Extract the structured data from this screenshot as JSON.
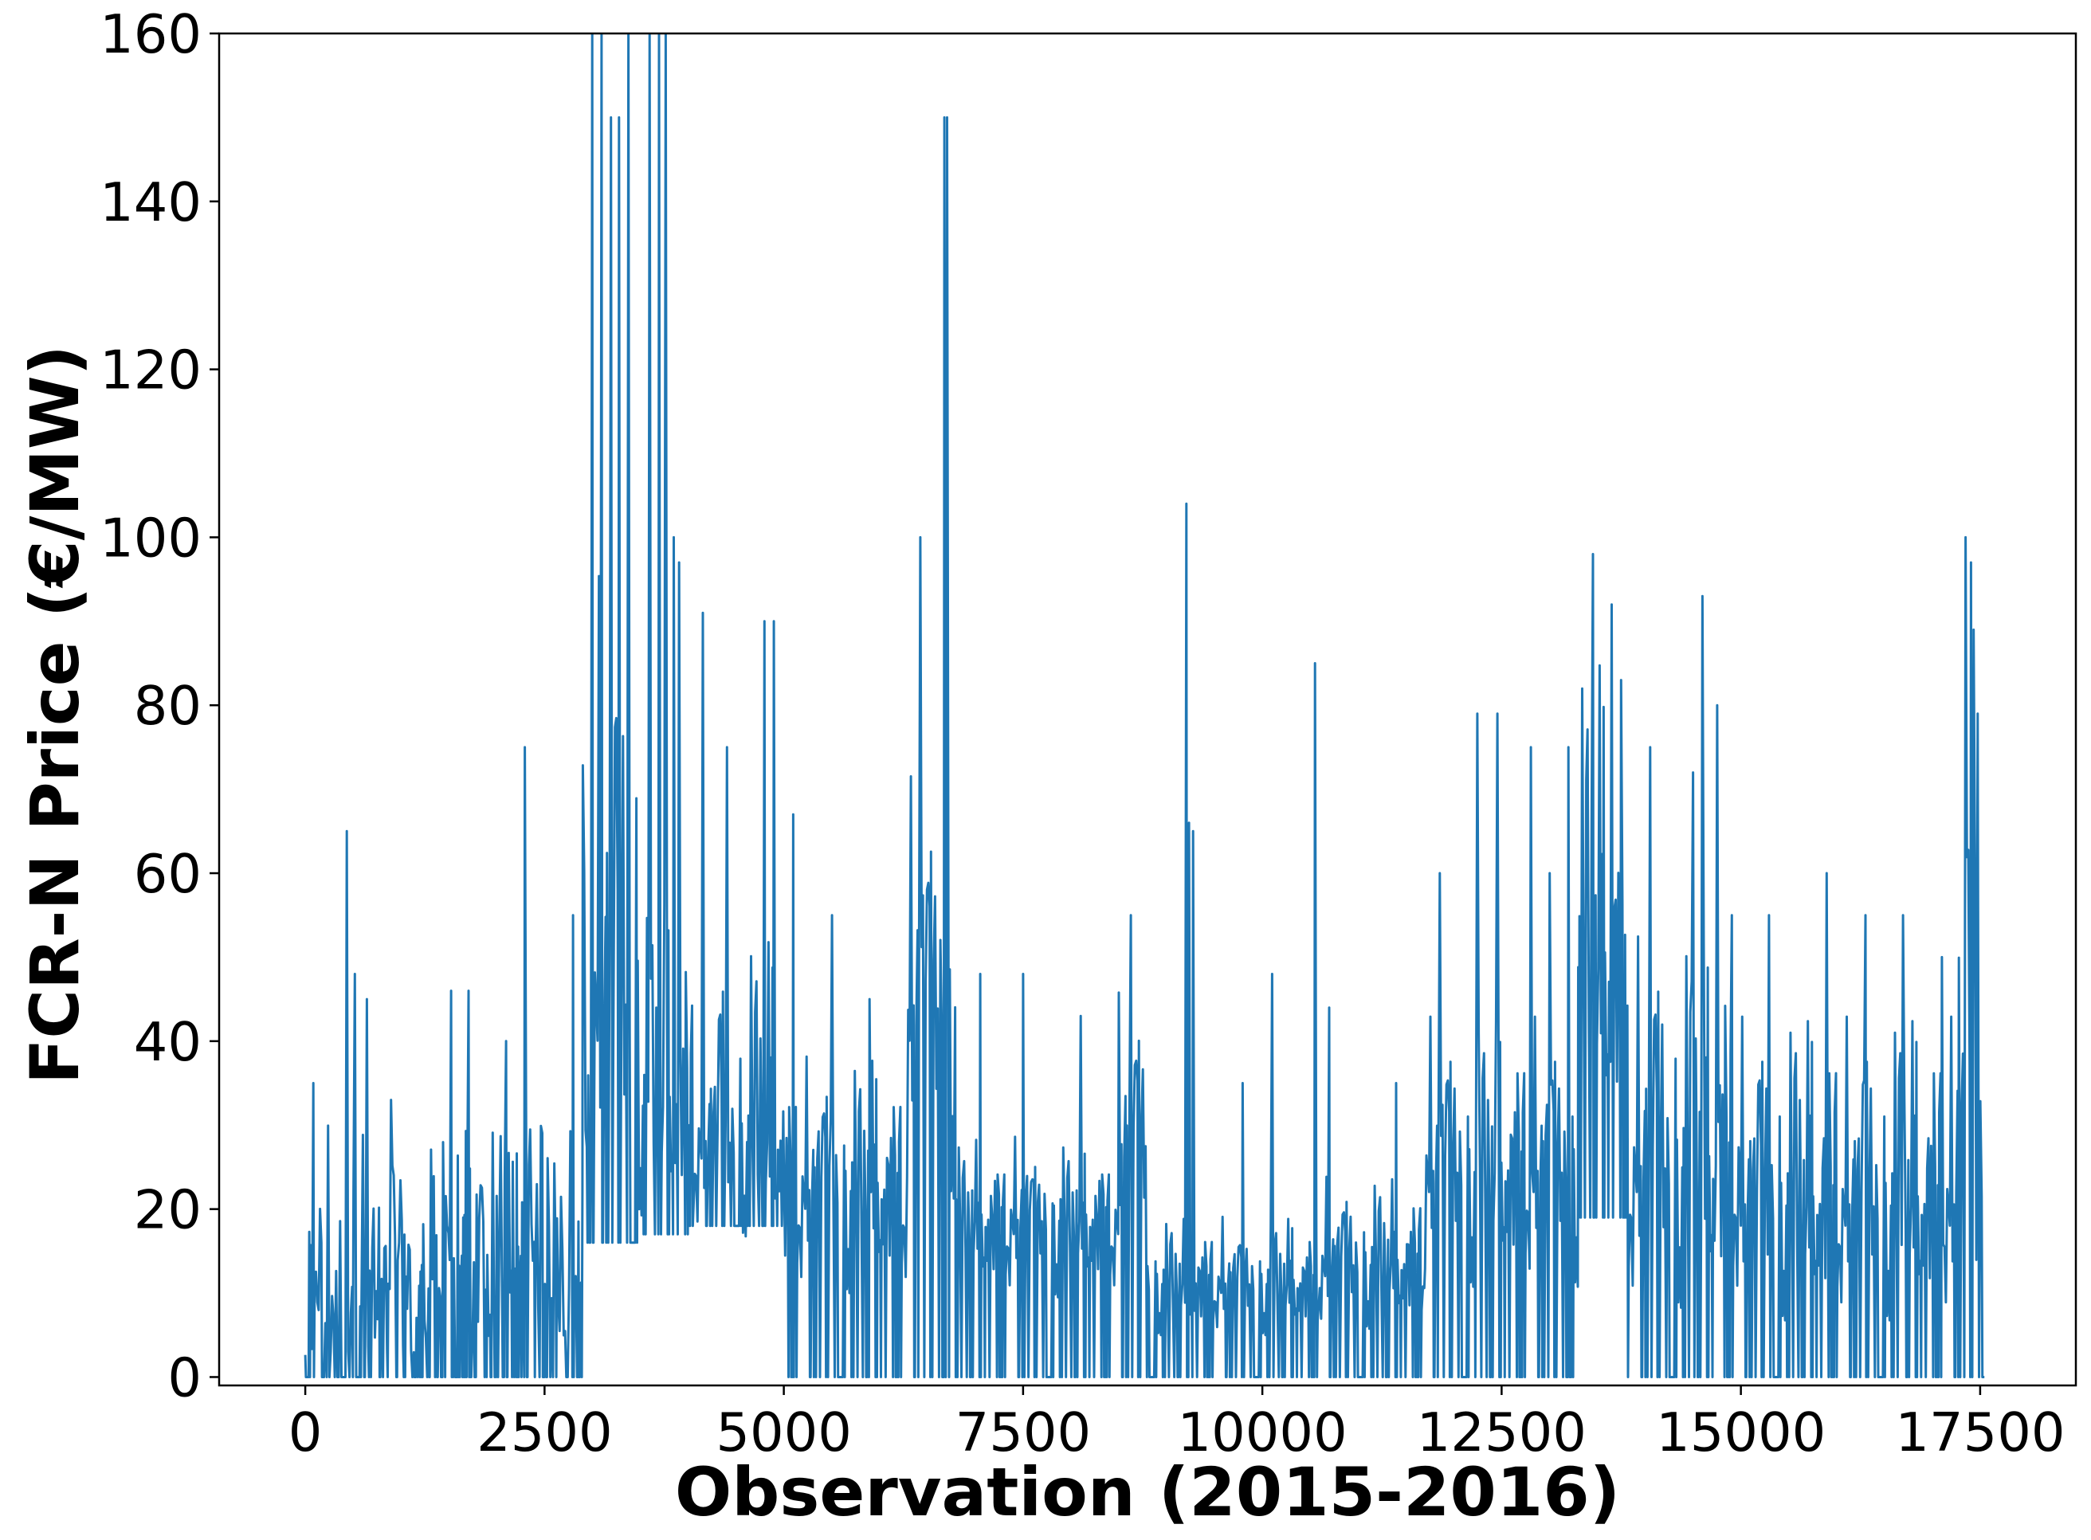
{
  "chart_data": {
    "type": "line",
    "title": "",
    "xlabel": "Observation (2015-2016)",
    "ylabel": "FCR-N Price (€/MW)",
    "xlim": [
      -900,
      18500
    ],
    "ylim": [
      -1,
      160
    ],
    "x_ticks": [
      0,
      2500,
      5000,
      7500,
      10000,
      12500,
      15000,
      17500
    ],
    "x_tick_labels": [
      "0",
      "2500",
      "5000",
      "7500",
      "10000",
      "12500",
      "15000",
      "17500"
    ],
    "y_ticks": [
      0,
      20,
      40,
      60,
      80,
      100,
      120,
      140,
      160
    ],
    "y_tick_labels": [
      "0",
      "20",
      "40",
      "60",
      "80",
      "100",
      "120",
      "140",
      "160"
    ],
    "grid": false,
    "legend": "none",
    "series_color": "#1f77b4",
    "x_range": [
      0,
      17544
    ],
    "segments": [
      {
        "x": [
          0,
          1300
        ],
        "low": 0,
        "high": 30,
        "mid": 10,
        "spikes": [
          [
            80,
            35
          ],
          [
            430,
            65
          ],
          [
            520,
            48
          ],
          [
            650,
            45
          ],
          [
            900,
            33
          ]
        ]
      },
      {
        "x": [
          1300,
          2900
        ],
        "low": 0,
        "high": 30,
        "mid": 12,
        "spikes": [
          [
            1520,
            46
          ],
          [
            1700,
            46
          ],
          [
            2100,
            40
          ],
          [
            2300,
            75
          ],
          [
            2800,
            55
          ]
        ]
      },
      {
        "x": [
          2900,
          3500
        ],
        "low": 16,
        "high": 100,
        "mid": 40,
        "spikes": [
          [
            3000,
            160
          ],
          [
            3100,
            160
          ],
          [
            3200,
            150
          ],
          [
            3280,
            150
          ],
          [
            3380,
            160
          ]
        ]
      },
      {
        "x": [
          3500,
          4000
        ],
        "low": 17,
        "high": 60,
        "mid": 30,
        "spikes": [
          [
            3600,
            160
          ],
          [
            3700,
            160
          ],
          [
            3760,
            160
          ],
          [
            3850,
            100
          ],
          [
            3900,
            97
          ]
        ]
      },
      {
        "x": [
          4000,
          5000
        ],
        "low": 18,
        "high": 55,
        "mid": 26,
        "spikes": [
          [
            4150,
            91
          ],
          [
            4400,
            75
          ],
          [
            4800,
            90
          ],
          [
            4900,
            90
          ]
        ]
      },
      {
        "x": [
          5000,
          6300
        ],
        "low": 0,
        "high": 40,
        "mid": 20,
        "spikes": [
          [
            5100,
            67
          ],
          [
            5500,
            55
          ],
          [
            5900,
            45
          ]
        ]
      },
      {
        "x": [
          6300,
          6800
        ],
        "low": 0,
        "high": 75,
        "mid": 40,
        "spikes": [
          [
            6430,
            100
          ],
          [
            6680,
            150
          ],
          [
            6700,
            150
          ]
        ]
      },
      {
        "x": [
          6800,
          8500
        ],
        "low": 0,
        "high": 30,
        "mid": 17,
        "spikes": [
          [
            7050,
            48
          ],
          [
            7500,
            48
          ],
          [
            8100,
            43
          ]
        ]
      },
      {
        "x": [
          8500,
          8800
        ],
        "low": 0,
        "high": 48,
        "mid": 25,
        "spikes": [
          [
            8620,
            55
          ]
        ]
      },
      {
        "x": [
          8800,
          10600
        ],
        "low": 0,
        "high": 20,
        "mid": 10,
        "spikes": [
          [
            9200,
            104
          ],
          [
            9240,
            66
          ],
          [
            9280,
            65
          ],
          [
            9800,
            35
          ],
          [
            10100,
            48
          ],
          [
            10550,
            85
          ]
        ]
      },
      {
        "x": [
          10600,
          11700
        ],
        "low": 0,
        "high": 25,
        "mid": 12,
        "spikes": [
          [
            10700,
            44
          ],
          [
            11400,
            35
          ]
        ]
      },
      {
        "x": [
          11700,
          13300
        ],
        "low": 0,
        "high": 45,
        "mid": 22,
        "spikes": [
          [
            11850,
            60
          ],
          [
            12240,
            79
          ],
          [
            12460,
            79
          ],
          [
            12800,
            75
          ],
          [
            13000,
            60
          ],
          [
            13200,
            75
          ]
        ]
      },
      {
        "x": [
          13300,
          13800
        ],
        "low": 19,
        "high": 90,
        "mid": 45,
        "spikes": [
          [
            13450,
            98
          ],
          [
            13650,
            92
          ],
          [
            13750,
            83
          ]
        ]
      },
      {
        "x": [
          13800,
          15000
        ],
        "low": 0,
        "high": 55,
        "mid": 22,
        "spikes": [
          [
            14050,
            75
          ],
          [
            14500,
            72
          ],
          [
            14600,
            93
          ],
          [
            14750,
            80
          ],
          [
            14900,
            55
          ]
        ]
      },
      {
        "x": [
          15000,
          17250
        ],
        "low": 0,
        "high": 45,
        "mid": 18,
        "spikes": [
          [
            15300,
            55
          ],
          [
            15900,
            60
          ],
          [
            16300,
            55
          ],
          [
            16700,
            55
          ],
          [
            17100,
            50
          ]
        ]
      },
      {
        "x": [
          17250,
          17544
        ],
        "low": 0,
        "high": 80,
        "mid": 20,
        "spikes": [
          [
            17350,
            100
          ],
          [
            17400,
            97
          ],
          [
            17430,
            89
          ],
          [
            17480,
            79
          ]
        ]
      }
    ]
  }
}
